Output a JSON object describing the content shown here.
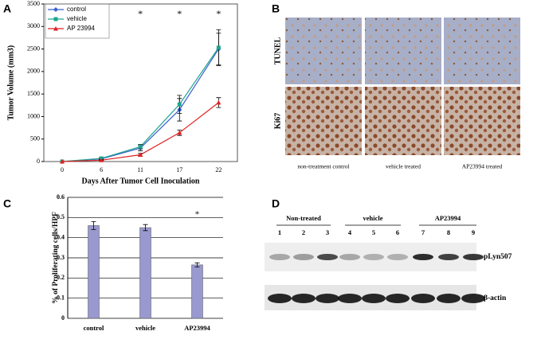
{
  "chart_data": [
    {
      "type": "line",
      "panel": "A",
      "xlabel": "Days After Tumor Cell Inoculation",
      "ylabel": "Tumor Volume (mm3)",
      "categories": [
        "0",
        "6",
        "11",
        "17",
        "22"
      ],
      "series": [
        {
          "name": "control",
          "color": "#3a5fcd",
          "values": [
            0,
            60,
            300,
            1150,
            2500
          ],
          "errors": [
            0,
            15,
            60,
            250,
            350
          ]
        },
        {
          "name": "vehicle",
          "color": "#1fa58f",
          "values": [
            0,
            70,
            330,
            1270,
            2530
          ],
          "errors": [
            0,
            15,
            50,
            200,
            400
          ]
        },
        {
          "name": "AP 23994",
          "color": "#e02020",
          "values": [
            0,
            30,
            150,
            640,
            1310
          ],
          "errors": [
            0,
            10,
            30,
            60,
            110
          ]
        }
      ],
      "annotations": [
        {
          "text": "*",
          "x": "11"
        },
        {
          "text": "*",
          "x": "17"
        },
        {
          "text": "*",
          "x": "22"
        }
      ],
      "ylim": [
        0,
        3500
      ],
      "yticks": [
        0,
        500,
        1000,
        1500,
        2000,
        2500,
        3000,
        3500
      ],
      "grid": false,
      "legend": "top-left"
    },
    {
      "type": "bar",
      "panel": "C",
      "ylabel": "% of Proliferating cells/HPF",
      "categories": [
        "control",
        "vehicle",
        "AP23994"
      ],
      "values": [
        0.46,
        0.45,
        0.265
      ],
      "errors": [
        0.02,
        0.015,
        0.01
      ],
      "color": "#9999cf",
      "annotations": [
        {
          "text": "*",
          "x": "AP23994"
        }
      ],
      "ylim": [
        0,
        0.6
      ],
      "yticks": [
        0,
        0.1,
        0.2,
        0.3,
        0.4,
        0.5,
        0.6
      ],
      "grid": true
    }
  ],
  "panel_b": {
    "panel": "B",
    "rows": [
      "TUNEL",
      "Ki67"
    ],
    "columns": [
      "non-treatment control",
      "vehicle treated",
      "AP23994 treated"
    ]
  },
  "panel_d": {
    "panel": "D",
    "groups": [
      "Non-treated",
      "vehicle",
      "AP23994"
    ],
    "lanes": [
      "1",
      "2",
      "3",
      "4",
      "5",
      "6",
      "7",
      "8",
      "9"
    ],
    "blots": [
      "pLyn507",
      "β-actin"
    ]
  }
}
